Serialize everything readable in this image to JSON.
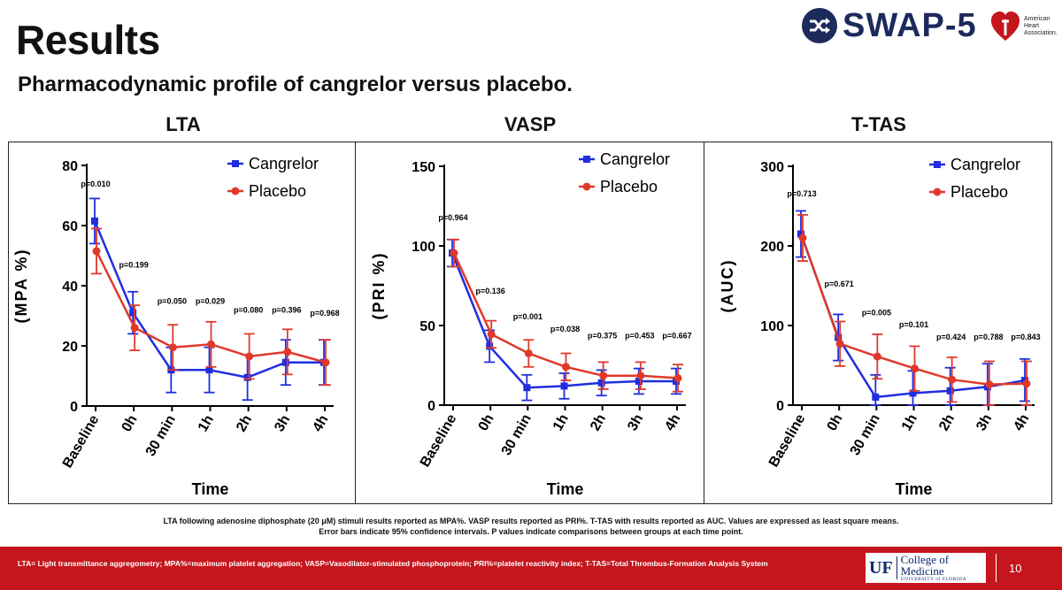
{
  "header": {
    "title": "Results",
    "subtitle": "Pharmacodynamic profile of cangrelor versus placebo.",
    "logo_text": "SWAP-5",
    "aha_text": "American Heart Association."
  },
  "colors": {
    "cangrelor": "#1f2ee0",
    "placebo": "#e0392b",
    "footer": "#c4161c"
  },
  "chart_data": [
    {
      "type": "line",
      "title": "LTA",
      "xlabel": "Time",
      "ylabel": "(MPA %)",
      "categories": [
        "Baseline",
        "0h",
        "30 min",
        "1h",
        "2h",
        "3h",
        "4h"
      ],
      "ylim": [
        0,
        80
      ],
      "yticks": [
        0,
        20,
        40,
        60,
        80
      ],
      "series": [
        {
          "name": "Cangrelor",
          "values": [
            61.5,
            31,
            12,
            12,
            9.5,
            14.5,
            14.5
          ],
          "lower": [
            54,
            24,
            4.5,
            4.5,
            2,
            7,
            7
          ],
          "upper": [
            69,
            38,
            19.5,
            19.5,
            17,
            22,
            22
          ]
        },
        {
          "name": "Placebo",
          "values": [
            51.5,
            26,
            19.5,
            20.5,
            16.5,
            18,
            14.5
          ],
          "lower": [
            44,
            18.5,
            12,
            13,
            9,
            10.5,
            7
          ],
          "upper": [
            59,
            33.5,
            27,
            28,
            24,
            25.5,
            22
          ]
        }
      ],
      "pvalues": [
        "p=0.010",
        "p=0.199",
        "p=0.050",
        "p=0.029",
        "p=0.080",
        "p=0.396",
        "p=0.968"
      ],
      "pvalue_levels": [
        73,
        46,
        34,
        34,
        31,
        31,
        30
      ],
      "legend": "top-right"
    },
    {
      "type": "line",
      "title": "VASP",
      "xlabel": "Time",
      "ylabel": "(PRI %)",
      "categories": [
        "Baseline",
        "0h",
        "30 min",
        "1h",
        "2h",
        "3h",
        "4h"
      ],
      "ylim": [
        0,
        150
      ],
      "yticks": [
        0,
        50,
        100,
        150
      ],
      "series": [
        {
          "name": "Cangrelor",
          "values": [
            95.5,
            37,
            11,
            12,
            14,
            15,
            15
          ],
          "lower": [
            87,
            27,
            3,
            4,
            6,
            7,
            7
          ],
          "upper": [
            104,
            47,
            19,
            20,
            22,
            23,
            23
          ]
        },
        {
          "name": "Placebo",
          "values": [
            95.5,
            44.5,
            32.5,
            24,
            18.5,
            18.5,
            17
          ],
          "lower": [
            87,
            36,
            24,
            15.5,
            10,
            10,
            8.5
          ],
          "upper": [
            104,
            53,
            41,
            32.5,
            27,
            27,
            25.5
          ]
        }
      ],
      "pvalues": [
        "p=0.964",
        "p=0.136",
        "p=0.001",
        "p=0.038",
        "p=0.375",
        "p=0.453",
        "p=0.667"
      ],
      "pvalue_levels": [
        116,
        70,
        54,
        46,
        42,
        42,
        42
      ],
      "legend": "top-right"
    },
    {
      "type": "line",
      "title": "T-TAS",
      "xlabel": "Time",
      "ylabel": "(AUC)",
      "categories": [
        "Baseline",
        "0h",
        "30 min",
        "1h",
        "2h",
        "3h",
        "4h"
      ],
      "ylim": [
        0,
        300
      ],
      "yticks": [
        0,
        100,
        200,
        300
      ],
      "series": [
        {
          "name": "Cangrelor",
          "values": [
            215,
            85,
            10,
            15,
            18,
            23,
            31
          ],
          "lower": [
            186,
            56,
            0,
            0,
            0,
            0,
            5
          ],
          "upper": [
            244,
            114,
            38,
            43,
            47,
            52,
            58
          ]
        },
        {
          "name": "Placebo",
          "values": [
            210,
            77,
            61,
            46,
            32,
            26,
            27
          ],
          "lower": [
            181,
            49,
            33,
            18,
            4,
            0,
            0
          ],
          "upper": [
            239,
            105,
            89,
            74,
            60,
            55,
            55
          ]
        }
      ],
      "pvalues": [
        "p=0.713",
        "p=0.671",
        "p=0.005",
        "p=0.101",
        "p=0.424",
        "p=0.788",
        "p=0.843"
      ],
      "pvalue_levels": [
        262,
        149,
        113,
        98,
        82,
        82,
        82
      ],
      "legend": "top-right"
    }
  ],
  "caption": {
    "line1": "LTA following adenosine diphosphate (20 μM) stimuli results reported as MPA%. VASP results reported as PRI%. T-TAS with results reported as AUC. Values are expressed as least square means.",
    "line2": "Error bars indicate 95% confidence intervals. P values indicate comparisons between groups at each time point."
  },
  "footer": {
    "abbreviations": "LTA= Light transmittance aggregometry; MPA%=maximum platelet aggregation; VASP=Vasodilator-stimulated phosphoprotein; PRI%=platelet reactivity index; T-TAS=Total Thrombus-Formation Analysis System",
    "uf_mark": "UF",
    "college": "College of Medicine",
    "university": "UNIVERSITY of FLORIDA",
    "page_number": "10"
  }
}
